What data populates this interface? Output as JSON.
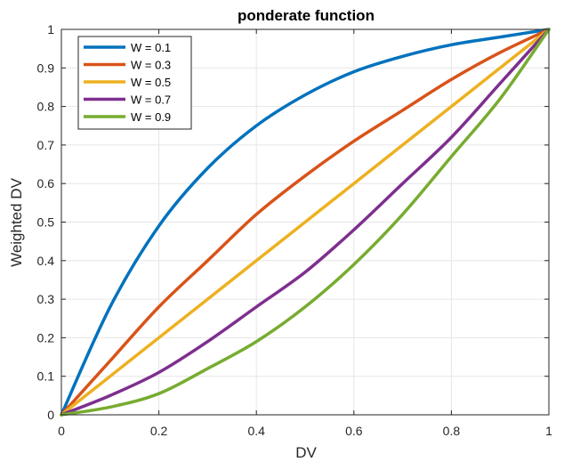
{
  "chart_data": {
    "type": "line",
    "title": "ponderate function",
    "xlabel": "DV",
    "ylabel": "Weighted DV",
    "xlim": [
      0,
      1
    ],
    "ylim": [
      0,
      1
    ],
    "grid": true,
    "legend_position": "top-left",
    "x_ticks": [
      0,
      0.2,
      0.4,
      0.6,
      0.8,
      1
    ],
    "x_tick_labels": [
      "0",
      "0.2",
      "0.4",
      "0.6",
      "0.8",
      "1"
    ],
    "y_ticks": [
      0,
      0.1,
      0.2,
      0.3,
      0.4,
      0.5,
      0.6,
      0.7,
      0.8,
      0.9,
      1
    ],
    "y_tick_labels": [
      "0",
      "0.1",
      "0.2",
      "0.3",
      "0.4",
      "0.5",
      "0.6",
      "0.7",
      "0.8",
      "0.9",
      "1"
    ],
    "x": [
      0,
      0.1,
      0.2,
      0.3,
      0.4,
      0.5,
      0.6,
      0.7,
      0.8,
      0.9,
      1
    ],
    "series": [
      {
        "name": "W = 0.1",
        "color": "#0072BD",
        "values": [
          0,
          0.28,
          0.49,
          0.64,
          0.75,
          0.83,
          0.89,
          0.93,
          0.96,
          0.98,
          1
        ]
      },
      {
        "name": "W = 0.3",
        "color": "#D95319",
        "values": [
          0,
          0.14,
          0.28,
          0.4,
          0.52,
          0.62,
          0.71,
          0.79,
          0.87,
          0.94,
          1
        ]
      },
      {
        "name": "W = 0.5",
        "color": "#EDB120",
        "values": [
          0,
          0.1,
          0.2,
          0.3,
          0.4,
          0.5,
          0.6,
          0.7,
          0.8,
          0.9,
          1
        ]
      },
      {
        "name": "W = 0.7",
        "color": "#7E2F8E",
        "values": [
          0,
          0.05,
          0.11,
          0.19,
          0.28,
          0.37,
          0.48,
          0.6,
          0.72,
          0.86,
          1
        ]
      },
      {
        "name": "W = 0.9",
        "color": "#77AC30",
        "values": [
          0,
          0.02,
          0.055,
          0.12,
          0.19,
          0.28,
          0.39,
          0.52,
          0.67,
          0.82,
          1
        ]
      }
    ]
  }
}
